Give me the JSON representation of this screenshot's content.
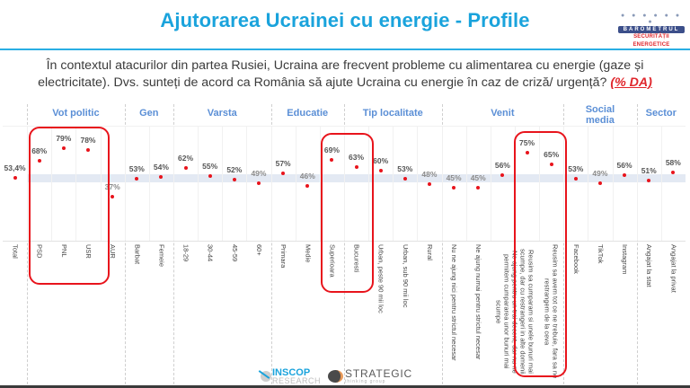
{
  "header": {
    "title": "Ajutorarea Ucrainei cu energie - Profile",
    "logo": {
      "dots": "● ● ● ● ● ● ●",
      "name": "BAROMETRUL",
      "subtitle": "SECURITĂȚII ENERGETICE"
    }
  },
  "question": {
    "text": "În contextul atacurilor din partea Rusiei, Ucraina are frecvent probleme cu alimentarea cu energie (gaze și electricitate). Dvs. sunteți de acord ca România să ajute Ucraina cu energie în caz de criză/ urgență?",
    "measure": "(% DA)"
  },
  "colors": {
    "title": "#1aa3dc",
    "group_header": "#5b8fd6",
    "dot": "#e8141c",
    "highlight_box": "#e8141c",
    "band": "#e3e9f3"
  },
  "chart_data": {
    "type": "scatter",
    "title": "Ajutorarea Ucrainei cu energie - Profile",
    "ylabel": "% DA",
    "reference_band": "Total (53,4%)",
    "groups": [
      {
        "name": "",
        "categories": [
          "Total"
        ]
      },
      {
        "name": "Vot politic",
        "categories": [
          "PSD",
          "PNL",
          "USR",
          "AUR"
        ]
      },
      {
        "name": "Gen",
        "categories": [
          "Barbat",
          "Femeie"
        ]
      },
      {
        "name": "Varsta",
        "categories": [
          "18-29",
          "30-44",
          "45-59",
          "60+"
        ]
      },
      {
        "name": "Educatie",
        "categories": [
          "Primara",
          "Medie",
          "Superioara"
        ]
      },
      {
        "name": "Tip localitate",
        "categories": [
          "Bucuresti",
          "Urban, peste 90 mii loc",
          "Urban, sub 90 mii loc",
          "Rural"
        ]
      },
      {
        "name": "Venit",
        "categories": [
          "Nu ne ajung nici pentru strictul necesar",
          "Ne ajung numai pentru strictul necesar",
          "Ne ajung pentru un trai decent, dar nu ne permitem cumpararea unor bunuri mai scumpe",
          "Reusim sa cumparam si unele bunuri mai scumpe, dar cu restrangeri in alte domenii",
          "Reusim sa avem tot ce ne trebuie, fara sa ne restrangem de la ceva"
        ]
      },
      {
        "name": "Social media",
        "categories": [
          "Facebook",
          "TikTok",
          "Instagram"
        ]
      },
      {
        "name": "Sector",
        "categories": [
          "Angajat la stat",
          "Angajat la privat"
        ]
      }
    ],
    "categories": [
      "Total",
      "PSD",
      "PNL",
      "USR",
      "AUR",
      "Barbat",
      "Femeie",
      "18-29",
      "30-44",
      "45-59",
      "60+",
      "Primara",
      "Medie",
      "Superioara",
      "Bucuresti",
      "Urban, peste 90 mii loc",
      "Urban, sub 90 mii loc",
      "Rural",
      "Nu ne ajung nici pentru strictul necesar",
      "Ne ajung numai pentru strictul necesar",
      "Ne ajung pentru un trai decent, dar nu ne permitem cumpararea unor bunuri mai scumpe",
      "Reusim sa cumparam si unele bunuri mai scumpe, dar cu restrangeri in alte domenii",
      "Reusim sa avem tot ce ne trebuie, fara sa ne restrangem de la ceva",
      "Facebook",
      "TikTok",
      "Instagram",
      "Angajat la stat",
      "Angajat la privat"
    ],
    "values": [
      53.4,
      68,
      79,
      78,
      37,
      53,
      54,
      62,
      55,
      52,
      49,
      57,
      46,
      69,
      63,
      60,
      53,
      48,
      45,
      45,
      56,
      75,
      65,
      53,
      49,
      56,
      51,
      58
    ],
    "value_labels": [
      "53,4%",
      "68%",
      "79%",
      "78%",
      "37%",
      "53%",
      "54%",
      "62%",
      "55%",
      "52%",
      "49%",
      "57%",
      "46%",
      "69%",
      "63%",
      "60%",
      "53%",
      "48%",
      "45%",
      "45%",
      "56%",
      "75%",
      "65%",
      "53%",
      "49%",
      "56%",
      "51%",
      "58%"
    ],
    "highlighted": [
      [
        "PSD",
        "PNL",
        "USR"
      ],
      [
        "Superioara",
        "Bucuresti"
      ],
      [
        "Reusim sa cumparam si unele bunuri mai scumpe, dar cu restrangeri in alte domenii",
        "Reusim sa avem tot ce ne trebuie, fara sa ne restrangem de la ceva"
      ]
    ],
    "grid": false,
    "legend": "none"
  },
  "group_headers": [
    "Vot politic",
    "Gen",
    "Varsta",
    "Educatie",
    "Tip localitate",
    "Venit",
    "Social media",
    "Sector"
  ],
  "footer": {
    "inscop": {
      "line1": "INSCOP",
      "line2": "RESEARCH"
    },
    "strategic": {
      "line1": "STRATEGIC",
      "line2": "thinking group"
    }
  }
}
